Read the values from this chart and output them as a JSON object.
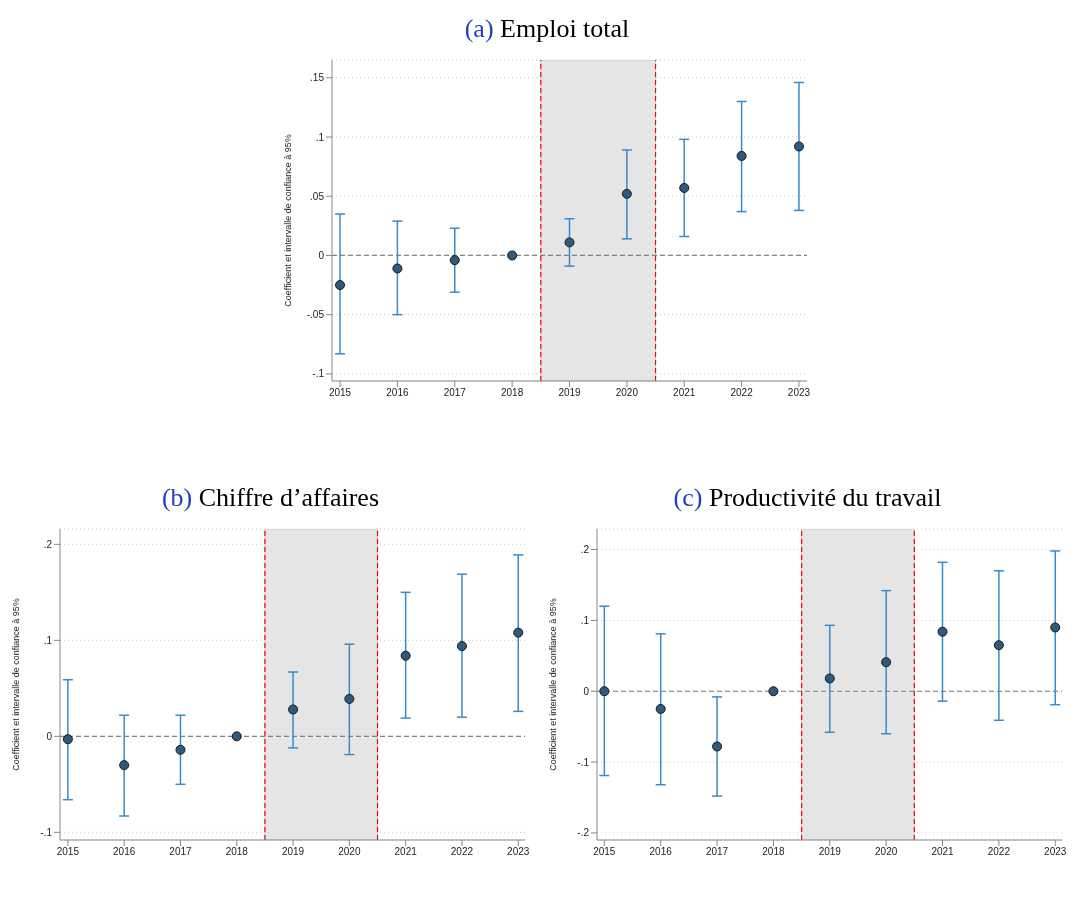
{
  "chart_data": [
    {
      "type": "scatter",
      "title": "(a) Emploi total",
      "ylabel": "Coefficient et intervalle de confiance à 95%",
      "x": [
        2015,
        2016,
        2017,
        2018,
        2019,
        2020,
        2021,
        2022,
        2023
      ],
      "values": [
        -0.025,
        -0.011,
        -0.004,
        0,
        0.011,
        0.052,
        0.057,
        0.084,
        0.092
      ],
      "errors": [
        [
          -0.083,
          0.035
        ],
        [
          -0.05,
          0.029
        ],
        [
          -0.031,
          0.023
        ],
        null,
        [
          -0.009,
          0.031
        ],
        [
          0.014,
          0.089
        ],
        [
          0.016,
          0.098
        ],
        [
          0.037,
          0.13
        ],
        [
          0.038,
          0.146
        ]
      ],
      "color": "#2f5a7e",
      "marker": "circle",
      "xlim": [
        2014.86,
        2023.14
      ],
      "xticks": [
        2015,
        2016,
        2017,
        2018,
        2019,
        2020,
        2021,
        2022,
        2023
      ],
      "ylim": [
        -0.106,
        0.165
      ],
      "yticks": [
        {
          "value": -0.1,
          "label": "-.1"
        },
        {
          "value": -0.05,
          "label": "-.05"
        },
        {
          "value": 0,
          "label": "0"
        },
        {
          "value": 0.05,
          "label": ".05"
        },
        {
          "value": 0.1,
          "label": ".1"
        },
        {
          "value": 0.15,
          "label": ".15"
        }
      ],
      "grid": "y",
      "ref_lines": [
        {
          "axis": "y",
          "value": 0,
          "color": "#808080",
          "line_style": "dashed"
        },
        {
          "axis": "x",
          "value": 2018.5,
          "color": "#ff0000",
          "line_style": "dashed"
        },
        {
          "axis": "x",
          "value": 2020.5,
          "color": "#ff0000",
          "line_style": "dashed"
        }
      ],
      "bands": [
        {
          "axis": "x",
          "from": 2018.5,
          "to": 2020.5,
          "color": "#e5e5e5"
        }
      ]
    },
    {
      "type": "scatter",
      "title": "(b) Chiffre d’affaires",
      "ylabel": "Coefficient et intervalle de confiance à 95%",
      "x": [
        2015,
        2016,
        2017,
        2018,
        2019,
        2020,
        2021,
        2022,
        2023
      ],
      "values": [
        -0.003,
        -0.03,
        -0.014,
        0,
        0.028,
        0.039,
        0.084,
        0.094,
        0.108
      ],
      "errors": [
        [
          -0.066,
          0.059
        ],
        [
          -0.083,
          0.022
        ],
        [
          -0.05,
          0.022
        ],
        null,
        [
          -0.012,
          0.067
        ],
        [
          -0.019,
          0.096
        ],
        [
          0.019,
          0.15
        ],
        [
          0.02,
          0.169
        ],
        [
          0.026,
          0.189
        ]
      ],
      "color": "#2f5a7e",
      "marker": "circle",
      "xlim": [
        2014.86,
        2023.12
      ],
      "xticks": [
        2015,
        2016,
        2017,
        2018,
        2019,
        2020,
        2021,
        2022,
        2023
      ],
      "ylim": [
        -0.108,
        0.216
      ],
      "yticks": [
        {
          "value": -0.1,
          "label": "-.1"
        },
        {
          "value": 0,
          "label": "0"
        },
        {
          "value": 0.1,
          "label": ".1"
        },
        {
          "value": 0.2,
          "label": ".2"
        }
      ],
      "grid": "y",
      "ref_lines": [
        {
          "axis": "y",
          "value": 0,
          "color": "#808080",
          "line_style": "dashed"
        },
        {
          "axis": "x",
          "value": 2018.5,
          "color": "#ff0000",
          "line_style": "dashed"
        },
        {
          "axis": "x",
          "value": 2020.5,
          "color": "#ff0000",
          "line_style": "dashed"
        }
      ],
      "bands": [
        {
          "axis": "x",
          "from": 2018.5,
          "to": 2020.5,
          "color": "#e5e5e5"
        }
      ]
    },
    {
      "type": "scatter",
      "title": "(c) Productivité du travail",
      "ylabel": "Coefficient et intervalle de confiance à 95%",
      "x": [
        2015,
        2016,
        2017,
        2018,
        2019,
        2020,
        2021,
        2022,
        2023
      ],
      "values": [
        0,
        -0.025,
        -0.078,
        0,
        0.018,
        0.041,
        0.084,
        0.065,
        0.09
      ],
      "errors": [
        [
          -0.119,
          0.12
        ],
        [
          -0.132,
          0.081
        ],
        [
          -0.148,
          -0.008
        ],
        null,
        [
          -0.058,
          0.093
        ],
        [
          -0.06,
          0.142
        ],
        [
          -0.014,
          0.182
        ],
        [
          -0.041,
          0.17
        ],
        [
          -0.019,
          0.198
        ]
      ],
      "color": "#2f5a7e",
      "marker": "circle",
      "xlim": [
        2014.87,
        2023.12
      ],
      "xticks": [
        2015,
        2016,
        2017,
        2018,
        2019,
        2020,
        2021,
        2022,
        2023
      ],
      "ylim": [
        -0.21,
        0.229
      ],
      "yticks": [
        {
          "value": -0.2,
          "label": "-.2"
        },
        {
          "value": -0.1,
          "label": "-.1"
        },
        {
          "value": 0,
          "label": "0"
        },
        {
          "value": 0.1,
          "label": ".1"
        },
        {
          "value": 0.2,
          "label": ".2"
        }
      ],
      "grid": "y",
      "ref_lines": [
        {
          "axis": "y",
          "value": 0,
          "color": "#808080",
          "line_style": "dashed"
        },
        {
          "axis": "x",
          "value": 2018.5,
          "color": "#ff0000",
          "line_style": "dashed"
        },
        {
          "axis": "x",
          "value": 2020.5,
          "color": "#ff0000",
          "line_style": "dashed"
        }
      ],
      "bands": [
        {
          "axis": "x",
          "from": 2018.5,
          "to": 2020.5,
          "color": "#e5e5e5"
        }
      ]
    }
  ]
}
